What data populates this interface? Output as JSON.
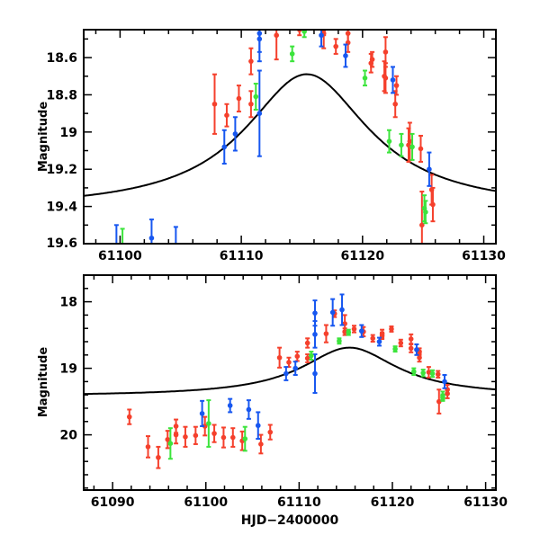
{
  "chart_data": [
    {
      "type": "scatter",
      "title": "",
      "xlabel": "",
      "ylabel": "Magnitude",
      "xlim": [
        61097,
        61131
      ],
      "ylim": [
        19.6,
        18.45
      ],
      "y_inverted": true,
      "xticks": [
        61100,
        61110,
        61120,
        61130
      ],
      "xtick_labels": [
        "61100",
        "61110",
        "61120",
        "61130"
      ],
      "yticks": [
        18.6,
        18.8,
        19.0,
        19.2,
        19.4,
        19.6
      ],
      "ytick_labels": [
        "18.6",
        "18.8",
        "19",
        "19.2",
        "19.4",
        "19.6"
      ],
      "grid": false,
      "model": {
        "name": "model light curve",
        "t0": 61115.4,
        "baseline": 19.42,
        "amplitude_flux": 0.96,
        "width_days": 5.3
      },
      "series": [
        {
          "name": "red",
          "color": "#f5402c",
          "points": [
            [
              61107.8,
              18.85,
              0.16
            ],
            [
              61108.8,
              18.91,
              0.06
            ],
            [
              61109.8,
              18.82,
              0.07
            ],
            [
              61110.8,
              18.85,
              0.07
            ],
            [
              61110.8,
              18.62,
              0.07
            ],
            [
              61112.9,
              18.48,
              0.13
            ],
            [
              61114.8,
              18.45,
              0.03
            ],
            [
              61116.8,
              18.45,
              0.03
            ],
            [
              61116.8,
              18.47,
              0.08
            ],
            [
              61117.8,
              18.54,
              0.04
            ],
            [
              61118.8,
              18.47,
              0.05
            ],
            [
              61118.8,
              18.52,
              0.05
            ],
            [
              61120.7,
              18.63,
              0.05
            ],
            [
              61120.8,
              18.61,
              0.04
            ],
            [
              61121.8,
              18.7,
              0.08
            ],
            [
              61121.9,
              18.71,
              0.08
            ],
            [
              61121.9,
              18.57,
              0.08
            ],
            [
              61122.8,
              18.75,
              0.05
            ],
            [
              61122.7,
              18.85,
              0.07
            ],
            [
              61123.8,
              19.07,
              0.09
            ],
            [
              61123.9,
              19.05,
              0.1
            ],
            [
              61124.8,
              19.09,
              0.07
            ],
            [
              61124.9,
              19.5,
              0.18
            ],
            [
              61125.7,
              19.31,
              0.08
            ],
            [
              61125.8,
              19.39,
              0.09
            ]
          ]
        },
        {
          "name": "blue",
          "color": "#1757f0",
          "points": [
            [
              61099.7,
              19.68,
              0.18
            ],
            [
              61102.6,
              19.57,
              0.1
            ],
            [
              61104.6,
              19.64,
              0.13
            ],
            [
              61108.6,
              19.08,
              0.09
            ],
            [
              61109.5,
              19.01,
              0.09
            ],
            [
              61111.5,
              18.47,
              0.1
            ],
            [
              61111.5,
              18.5,
              0.12
            ],
            [
              61111.5,
              18.9,
              0.23
            ],
            [
              61116.6,
              18.48,
              0.06
            ],
            [
              61118.6,
              18.59,
              0.06
            ],
            [
              61122.5,
              18.72,
              0.07
            ],
            [
              61125.5,
              19.2,
              0.09
            ]
          ]
        },
        {
          "name": "green",
          "color": "#3ce43c",
          "points": [
            [
              61100.2,
              19.65,
              0.13
            ],
            [
              61111.2,
              18.81,
              0.07
            ],
            [
              61114.2,
              18.58,
              0.04
            ],
            [
              61115.2,
              18.46,
              0.03
            ],
            [
              61120.2,
              18.71,
              0.04
            ],
            [
              61122.2,
              19.05,
              0.06
            ],
            [
              61123.2,
              19.07,
              0.06
            ],
            [
              61124.1,
              19.08,
              0.07
            ],
            [
              61125.1,
              19.41,
              0.07
            ],
            [
              61125.2,
              19.43,
              0.06
            ]
          ]
        }
      ]
    },
    {
      "type": "scatter",
      "title": "",
      "xlabel": "HJD−2400000",
      "ylabel": "Magnitude",
      "xlim": [
        61086.9,
        61131.1
      ],
      "ylim": [
        20.83,
        17.6
      ],
      "y_inverted": true,
      "xticks": [
        61090,
        61100,
        61110,
        61120,
        61130
      ],
      "xtick_labels": [
        "61090",
        "61100",
        "61110",
        "61120",
        "61130"
      ],
      "yticks": [
        18,
        19,
        20
      ],
      "ytick_labels": [
        "18",
        "19",
        "20"
      ],
      "grid": false,
      "model": {
        "name": "model light curve",
        "t0": 61115.4,
        "baseline": 19.42,
        "amplitude_flux": 0.96,
        "width_days": 5.3
      },
      "series": [
        {
          "name": "red",
          "color": "#f5402c",
          "points": [
            [
              61091.8,
              19.73,
              0.11
            ],
            [
              61093.8,
              20.18,
              0.16
            ],
            [
              61094.9,
              20.34,
              0.16
            ],
            [
              61095.9,
              20.07,
              0.13
            ],
            [
              61096.8,
              19.87,
              0.1
            ],
            [
              61096.8,
              20.0,
              0.13
            ],
            [
              61097.8,
              20.03,
              0.15
            ],
            [
              61098.9,
              20.01,
              0.13
            ],
            [
              61099.9,
              19.87,
              0.14
            ],
            [
              61100.9,
              19.98,
              0.13
            ],
            [
              61101.9,
              20.04,
              0.15
            ],
            [
              61102.9,
              20.04,
              0.14
            ],
            [
              61103.9,
              20.09,
              0.14
            ],
            [
              61105.9,
              20.14,
              0.14
            ],
            [
              61106.9,
              19.96,
              0.11
            ],
            [
              61107.9,
              18.84,
              0.15
            ],
            [
              61108.9,
              18.91,
              0.07
            ],
            [
              61109.8,
              18.82,
              0.07
            ],
            [
              61110.9,
              18.62,
              0.07
            ],
            [
              61110.9,
              18.85,
              0.06
            ],
            [
              61112.9,
              18.48,
              0.13
            ],
            [
              61113.8,
              18.18,
              0.05
            ],
            [
              61114.9,
              18.33,
              0.13
            ],
            [
              61114.9,
              18.45,
              0.05
            ],
            [
              61115.9,
              18.41,
              0.05
            ],
            [
              61116.9,
              18.45,
              0.07
            ],
            [
              61117.9,
              18.55,
              0.05
            ],
            [
              61118.9,
              18.48,
              0.06
            ],
            [
              61118.9,
              18.51,
              0.05
            ],
            [
              61119.9,
              18.41,
              0.04
            ],
            [
              61120.9,
              18.62,
              0.05
            ],
            [
              61122.0,
              18.56,
              0.07
            ],
            [
              61122.0,
              18.7,
              0.06
            ],
            [
              61122.9,
              18.75,
              0.05
            ],
            [
              61122.9,
              18.84,
              0.06
            ],
            [
              61123.9,
              19.06,
              0.08
            ],
            [
              61124.9,
              19.09,
              0.05
            ],
            [
              61125.0,
              19.5,
              0.18
            ],
            [
              61125.9,
              19.32,
              0.07
            ],
            [
              61125.9,
              19.38,
              0.07
            ]
          ]
        },
        {
          "name": "blue",
          "color": "#1757f0",
          "points": [
            [
              61099.6,
              19.68,
              0.19
            ],
            [
              61102.6,
              19.56,
              0.1
            ],
            [
              61104.6,
              19.62,
              0.14
            ],
            [
              61105.6,
              19.86,
              0.2
            ],
            [
              61108.6,
              19.08,
              0.1
            ],
            [
              61109.6,
              19.0,
              0.1
            ],
            [
              61111.7,
              18.17,
              0.19
            ],
            [
              61111.7,
              18.49,
              0.2
            ],
            [
              61111.7,
              19.08,
              0.29
            ],
            [
              61113.6,
              18.16,
              0.2
            ],
            [
              61114.6,
              18.12,
              0.23
            ],
            [
              61116.7,
              18.44,
              0.09
            ],
            [
              61118.6,
              18.6,
              0.06
            ],
            [
              61122.6,
              18.72,
              0.08
            ],
            [
              61125.6,
              19.2,
              0.1
            ]
          ]
        },
        {
          "name": "green",
          "color": "#3ce43c",
          "points": [
            [
              61096.2,
              20.13,
              0.23
            ],
            [
              61100.3,
              19.83,
              0.35
            ],
            [
              61104.2,
              20.06,
              0.18
            ],
            [
              61111.3,
              18.81,
              0.06
            ],
            [
              61114.3,
              18.59,
              0.04
            ],
            [
              61115.3,
              18.46,
              0.04
            ],
            [
              61120.3,
              18.71,
              0.04
            ],
            [
              61122.3,
              19.05,
              0.05
            ],
            [
              61123.3,
              19.07,
              0.05
            ],
            [
              61124.3,
              19.08,
              0.05
            ],
            [
              61125.4,
              19.41,
              0.06
            ],
            [
              61125.4,
              19.44,
              0.05
            ]
          ]
        }
      ]
    }
  ]
}
